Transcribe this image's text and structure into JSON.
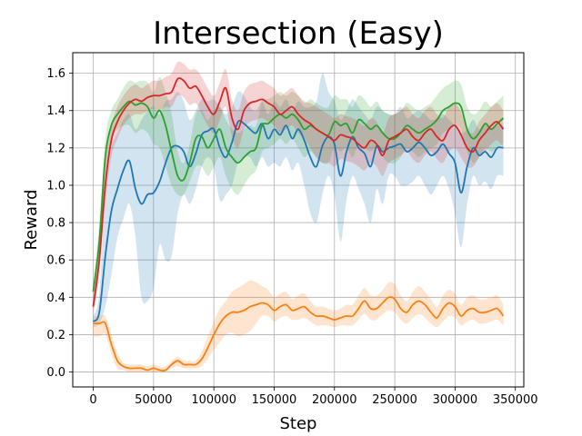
{
  "chart_data": {
    "type": "line",
    "title": "Intersection (Easy)",
    "xlabel": "Step",
    "ylabel": "Reward",
    "xlim": [
      -17000,
      357000
    ],
    "ylim": [
      -0.08,
      1.71
    ],
    "grid": true,
    "x_ticks": [
      0,
      50000,
      100000,
      150000,
      200000,
      250000,
      300000,
      350000
    ],
    "x_tick_labels": [
      "0",
      "50000",
      "100000",
      "150000",
      "200000",
      "250000",
      "300000",
      "350000"
    ],
    "y_ticks": [
      0.0,
      0.2,
      0.4,
      0.6,
      0.8,
      1.0,
      1.2,
      1.4,
      1.6
    ],
    "y_tick_labels": [
      "0.0",
      "0.2",
      "0.4",
      "0.6",
      "0.8",
      "1.0",
      "1.2",
      "1.4",
      "1.6"
    ],
    "series": [
      {
        "color": "#1f77b4",
        "x": [
          0,
          5000,
          10000,
          15000,
          20000,
          25000,
          30000,
          35000,
          40000,
          45000,
          50000,
          55000,
          60000,
          65000,
          70000,
          75000,
          80000,
          85000,
          90000,
          95000,
          100000,
          105000,
          110000,
          115000,
          120000,
          125000,
          130000,
          135000,
          140000,
          145000,
          150000,
          155000,
          160000,
          165000,
          170000,
          175000,
          180000,
          185000,
          190000,
          195000,
          200000,
          205000,
          210000,
          215000,
          220000,
          225000,
          230000,
          235000,
          240000,
          245000,
          250000,
          255000,
          260000,
          265000,
          270000,
          275000,
          280000,
          285000,
          290000,
          295000,
          300000,
          305000,
          310000,
          315000,
          320000,
          325000,
          330000,
          335000,
          340000
        ],
        "values": [
          0.27,
          0.32,
          0.62,
          0.86,
          0.98,
          1.08,
          1.13,
          0.98,
          0.9,
          0.95,
          0.96,
          1.02,
          1.12,
          1.2,
          1.21,
          1.18,
          1.1,
          1.17,
          1.27,
          1.29,
          1.3,
          1.2,
          1.15,
          1.23,
          1.34,
          1.33,
          1.3,
          1.28,
          1.33,
          1.25,
          1.3,
          1.27,
          1.32,
          1.25,
          1.3,
          1.24,
          1.15,
          1.1,
          1.21,
          1.26,
          1.22,
          1.05,
          1.18,
          1.26,
          1.2,
          1.17,
          1.1,
          1.21,
          1.18,
          1.2,
          1.21,
          1.22,
          1.18,
          1.2,
          1.23,
          1.2,
          1.16,
          1.18,
          1.22,
          1.17,
          1.12,
          0.96,
          1.1,
          1.2,
          1.16,
          1.18,
          1.15,
          1.2,
          1.2
        ],
        "lower": [
          0.24,
          0.26,
          0.35,
          0.52,
          0.72,
          0.82,
          0.9,
          0.72,
          0.4,
          0.38,
          0.45,
          0.68,
          0.6,
          0.62,
          0.85,
          0.95,
          0.9,
          0.98,
          1.1,
          1.15,
          1.1,
          0.92,
          0.95,
          1.0,
          1.12,
          1.15,
          1.15,
          1.1,
          1.15,
          1.1,
          1.12,
          1.1,
          1.15,
          1.08,
          1.12,
          1.0,
          0.85,
          0.8,
          0.95,
          1.05,
          0.95,
          0.7,
          0.92,
          1.05,
          0.98,
          0.9,
          0.8,
          0.98,
          0.9,
          1.05,
          1.05,
          1.0,
          1.0,
          1.02,
          1.05,
          1.0,
          0.95,
          1.0,
          1.05,
          0.98,
          0.85,
          0.67,
          0.9,
          1.05,
          1.0,
          1.02,
          0.98,
          1.05,
          1.05
        ],
        "upper": [
          0.3,
          0.42,
          0.95,
          1.2,
          1.28,
          1.35,
          1.38,
          1.3,
          1.35,
          1.4,
          1.42,
          1.38,
          1.45,
          1.46,
          1.5,
          1.45,
          1.35,
          1.4,
          1.46,
          1.45,
          1.46,
          1.42,
          1.38,
          1.42,
          1.5,
          1.48,
          1.42,
          1.4,
          1.45,
          1.38,
          1.45,
          1.42,
          1.46,
          1.4,
          1.45,
          1.42,
          1.42,
          1.45,
          1.6,
          1.5,
          1.45,
          1.35,
          1.4,
          1.46,
          1.42,
          1.38,
          1.35,
          1.42,
          1.4,
          1.38,
          1.38,
          1.42,
          1.36,
          1.38,
          1.4,
          1.38,
          1.35,
          1.36,
          1.38,
          1.35,
          1.32,
          1.28,
          1.3,
          1.35,
          1.3,
          1.32,
          1.3,
          1.32,
          1.32
        ]
      },
      {
        "color": "#ff7f0e",
        "x": [
          0,
          5000,
          10000,
          15000,
          20000,
          25000,
          30000,
          35000,
          40000,
          45000,
          50000,
          55000,
          60000,
          65000,
          70000,
          75000,
          80000,
          85000,
          90000,
          95000,
          100000,
          105000,
          110000,
          115000,
          120000,
          125000,
          130000,
          135000,
          140000,
          145000,
          150000,
          155000,
          160000,
          165000,
          170000,
          175000,
          180000,
          185000,
          190000,
          195000,
          200000,
          205000,
          210000,
          215000,
          220000,
          225000,
          230000,
          235000,
          240000,
          245000,
          250000,
          255000,
          260000,
          265000,
          270000,
          275000,
          280000,
          285000,
          290000,
          295000,
          300000,
          305000,
          310000,
          315000,
          320000,
          325000,
          330000,
          335000,
          340000
        ],
        "values": [
          0.26,
          0.26,
          0.26,
          0.15,
          0.06,
          0.03,
          0.02,
          0.02,
          0.02,
          0.01,
          0.02,
          0.01,
          0.01,
          0.04,
          0.06,
          0.04,
          0.04,
          0.04,
          0.07,
          0.13,
          0.2,
          0.26,
          0.3,
          0.32,
          0.32,
          0.33,
          0.35,
          0.36,
          0.37,
          0.36,
          0.33,
          0.35,
          0.36,
          0.33,
          0.34,
          0.35,
          0.32,
          0.3,
          0.3,
          0.29,
          0.28,
          0.29,
          0.3,
          0.3,
          0.34,
          0.38,
          0.34,
          0.34,
          0.37,
          0.4,
          0.39,
          0.34,
          0.32,
          0.36,
          0.38,
          0.36,
          0.32,
          0.29,
          0.34,
          0.37,
          0.35,
          0.3,
          0.33,
          0.34,
          0.32,
          0.32,
          0.33,
          0.34,
          0.3
        ],
        "lower": [
          0.19,
          0.19,
          0.2,
          0.1,
          0.02,
          0.01,
          0.0,
          0.0,
          0.0,
          0.0,
          0.0,
          0.0,
          0.0,
          0.02,
          0.03,
          0.02,
          0.02,
          0.02,
          0.03,
          0.07,
          0.12,
          0.16,
          0.2,
          0.21,
          0.19,
          0.2,
          0.22,
          0.26,
          0.3,
          0.3,
          0.27,
          0.29,
          0.3,
          0.28,
          0.28,
          0.29,
          0.27,
          0.25,
          0.25,
          0.25,
          0.24,
          0.25,
          0.25,
          0.25,
          0.28,
          0.31,
          0.28,
          0.28,
          0.31,
          0.33,
          0.32,
          0.28,
          0.26,
          0.29,
          0.31,
          0.29,
          0.26,
          0.24,
          0.27,
          0.3,
          0.29,
          0.25,
          0.27,
          0.28,
          0.26,
          0.26,
          0.27,
          0.28,
          0.25
        ],
        "upper": [
          0.3,
          0.3,
          0.3,
          0.2,
          0.1,
          0.05,
          0.04,
          0.04,
          0.04,
          0.03,
          0.04,
          0.03,
          0.03,
          0.06,
          0.08,
          0.06,
          0.06,
          0.06,
          0.11,
          0.19,
          0.27,
          0.34,
          0.38,
          0.43,
          0.45,
          0.47,
          0.49,
          0.48,
          0.46,
          0.44,
          0.4,
          0.42,
          0.43,
          0.39,
          0.41,
          0.42,
          0.38,
          0.35,
          0.35,
          0.34,
          0.33,
          0.34,
          0.36,
          0.36,
          0.41,
          0.45,
          0.41,
          0.41,
          0.44,
          0.48,
          0.47,
          0.41,
          0.38,
          0.43,
          0.46,
          0.43,
          0.39,
          0.35,
          0.41,
          0.44,
          0.42,
          0.36,
          0.4,
          0.41,
          0.39,
          0.39,
          0.4,
          0.41,
          0.36
        ]
      },
      {
        "color": "#2ca02c",
        "x": [
          0,
          5000,
          10000,
          15000,
          20000,
          25000,
          30000,
          35000,
          40000,
          45000,
          50000,
          55000,
          60000,
          65000,
          70000,
          75000,
          80000,
          85000,
          90000,
          95000,
          100000,
          105000,
          110000,
          115000,
          120000,
          125000,
          130000,
          135000,
          140000,
          145000,
          150000,
          155000,
          160000,
          165000,
          170000,
          175000,
          180000,
          185000,
          190000,
          195000,
          200000,
          205000,
          210000,
          215000,
          220000,
          225000,
          230000,
          235000,
          240000,
          245000,
          250000,
          255000,
          260000,
          265000,
          270000,
          275000,
          280000,
          285000,
          290000,
          295000,
          300000,
          305000,
          310000,
          315000,
          320000,
          325000,
          330000,
          335000,
          340000
        ],
        "values": [
          0.43,
          0.7,
          1.15,
          1.32,
          1.38,
          1.42,
          1.45,
          1.43,
          1.44,
          1.42,
          1.36,
          1.4,
          1.32,
          1.18,
          1.05,
          1.03,
          1.12,
          1.25,
          1.26,
          1.2,
          1.25,
          1.3,
          1.2,
          1.15,
          1.12,
          1.15,
          1.18,
          1.2,
          1.32,
          1.33,
          1.36,
          1.38,
          1.36,
          1.38,
          1.35,
          1.3,
          1.32,
          1.3,
          1.28,
          1.27,
          1.34,
          1.32,
          1.33,
          1.28,
          1.35,
          1.33,
          1.3,
          1.32,
          1.28,
          1.25,
          1.25,
          1.28,
          1.32,
          1.3,
          1.28,
          1.3,
          1.32,
          1.35,
          1.4,
          1.42,
          1.44,
          1.42,
          1.3,
          1.25,
          1.28,
          1.33,
          1.3,
          1.33,
          1.36
        ],
        "lower": [
          0.38,
          0.6,
          1.05,
          1.24,
          1.3,
          1.32,
          1.32,
          1.28,
          1.3,
          1.28,
          1.22,
          1.2,
          1.1,
          1.0,
          0.95,
          0.95,
          1.02,
          1.1,
          1.1,
          1.05,
          1.1,
          1.15,
          1.05,
          0.98,
          0.95,
          1.0,
          1.05,
          1.08,
          1.18,
          1.2,
          1.22,
          1.25,
          1.22,
          1.25,
          1.2,
          1.15,
          1.18,
          1.15,
          1.12,
          1.12,
          1.2,
          1.18,
          1.2,
          1.15,
          1.22,
          1.2,
          1.18,
          1.2,
          1.15,
          1.12,
          1.12,
          1.15,
          1.2,
          1.18,
          1.15,
          1.18,
          1.2,
          1.22,
          1.28,
          1.3,
          1.32,
          1.3,
          1.18,
          1.12,
          1.15,
          1.2,
          1.18,
          1.2,
          1.22
        ],
        "upper": [
          0.48,
          0.8,
          1.25,
          1.4,
          1.46,
          1.52,
          1.56,
          1.55,
          1.56,
          1.55,
          1.5,
          1.58,
          1.5,
          1.38,
          1.18,
          1.12,
          1.22,
          1.38,
          1.4,
          1.35,
          1.4,
          1.42,
          1.35,
          1.3,
          1.28,
          1.3,
          1.32,
          1.32,
          1.45,
          1.46,
          1.48,
          1.5,
          1.48,
          1.5,
          1.48,
          1.44,
          1.46,
          1.44,
          1.42,
          1.42,
          1.48,
          1.46,
          1.46,
          1.42,
          1.48,
          1.46,
          1.42,
          1.45,
          1.4,
          1.38,
          1.38,
          1.4,
          1.44,
          1.42,
          1.4,
          1.42,
          1.44,
          1.48,
          1.52,
          1.54,
          1.56,
          1.54,
          1.42,
          1.38,
          1.4,
          1.45,
          1.42,
          1.45,
          1.48
        ]
      },
      {
        "color": "#d62728",
        "x": [
          0,
          5000,
          10000,
          15000,
          20000,
          25000,
          30000,
          35000,
          40000,
          45000,
          50000,
          55000,
          60000,
          65000,
          70000,
          75000,
          80000,
          85000,
          90000,
          95000,
          100000,
          105000,
          110000,
          115000,
          120000,
          125000,
          130000,
          135000,
          140000,
          145000,
          150000,
          155000,
          160000,
          165000,
          170000,
          175000,
          180000,
          185000,
          190000,
          195000,
          200000,
          205000,
          210000,
          215000,
          220000,
          225000,
          230000,
          235000,
          240000,
          245000,
          250000,
          255000,
          260000,
          265000,
          270000,
          275000,
          280000,
          285000,
          290000,
          295000,
          300000,
          305000,
          310000,
          315000,
          320000,
          325000,
          330000,
          335000,
          340000
        ],
        "values": [
          0.35,
          0.6,
          1.0,
          1.24,
          1.34,
          1.4,
          1.44,
          1.46,
          1.45,
          1.47,
          1.48,
          1.48,
          1.49,
          1.5,
          1.57,
          1.56,
          1.52,
          1.53,
          1.48,
          1.42,
          1.38,
          1.45,
          1.52,
          1.36,
          1.3,
          1.4,
          1.44,
          1.45,
          1.46,
          1.44,
          1.42,
          1.38,
          1.4,
          1.42,
          1.38,
          1.35,
          1.33,
          1.3,
          1.28,
          1.26,
          1.24,
          1.27,
          1.26,
          1.25,
          1.22,
          1.2,
          1.24,
          1.22,
          1.16,
          1.24,
          1.26,
          1.28,
          1.3,
          1.26,
          1.24,
          1.28,
          1.3,
          1.26,
          1.24,
          1.3,
          1.32,
          1.27,
          1.2,
          1.18,
          1.24,
          1.28,
          1.32,
          1.34,
          1.3
        ],
        "lower": [
          0.3,
          0.52,
          0.9,
          1.15,
          1.25,
          1.32,
          1.36,
          1.38,
          1.38,
          1.4,
          1.41,
          1.4,
          1.42,
          1.42,
          1.48,
          1.47,
          1.43,
          1.44,
          1.38,
          1.32,
          1.28,
          1.35,
          1.42,
          1.26,
          1.2,
          1.3,
          1.34,
          1.35,
          1.36,
          1.34,
          1.32,
          1.28,
          1.3,
          1.32,
          1.28,
          1.25,
          1.2,
          1.15,
          1.12,
          1.12,
          1.1,
          1.14,
          1.13,
          1.12,
          1.1,
          1.08,
          1.12,
          1.1,
          1.05,
          1.12,
          1.14,
          1.16,
          1.18,
          1.14,
          1.12,
          1.16,
          1.18,
          1.14,
          1.12,
          1.18,
          1.2,
          1.15,
          1.1,
          1.1,
          1.15,
          1.18,
          1.22,
          1.24,
          1.2
        ],
        "upper": [
          0.4,
          0.68,
          1.1,
          1.32,
          1.42,
          1.48,
          1.52,
          1.54,
          1.52,
          1.54,
          1.56,
          1.56,
          1.58,
          1.6,
          1.66,
          1.65,
          1.62,
          1.62,
          1.58,
          1.52,
          1.48,
          1.55,
          1.62,
          1.46,
          1.4,
          1.5,
          1.54,
          1.55,
          1.56,
          1.54,
          1.52,
          1.48,
          1.5,
          1.52,
          1.48,
          1.45,
          1.44,
          1.42,
          1.4,
          1.38,
          1.36,
          1.38,
          1.37,
          1.36,
          1.34,
          1.32,
          1.36,
          1.34,
          1.28,
          1.36,
          1.38,
          1.4,
          1.42,
          1.38,
          1.36,
          1.4,
          1.42,
          1.38,
          1.36,
          1.42,
          1.44,
          1.39,
          1.3,
          1.28,
          1.34,
          1.38,
          1.42,
          1.44,
          1.4
        ]
      }
    ]
  }
}
